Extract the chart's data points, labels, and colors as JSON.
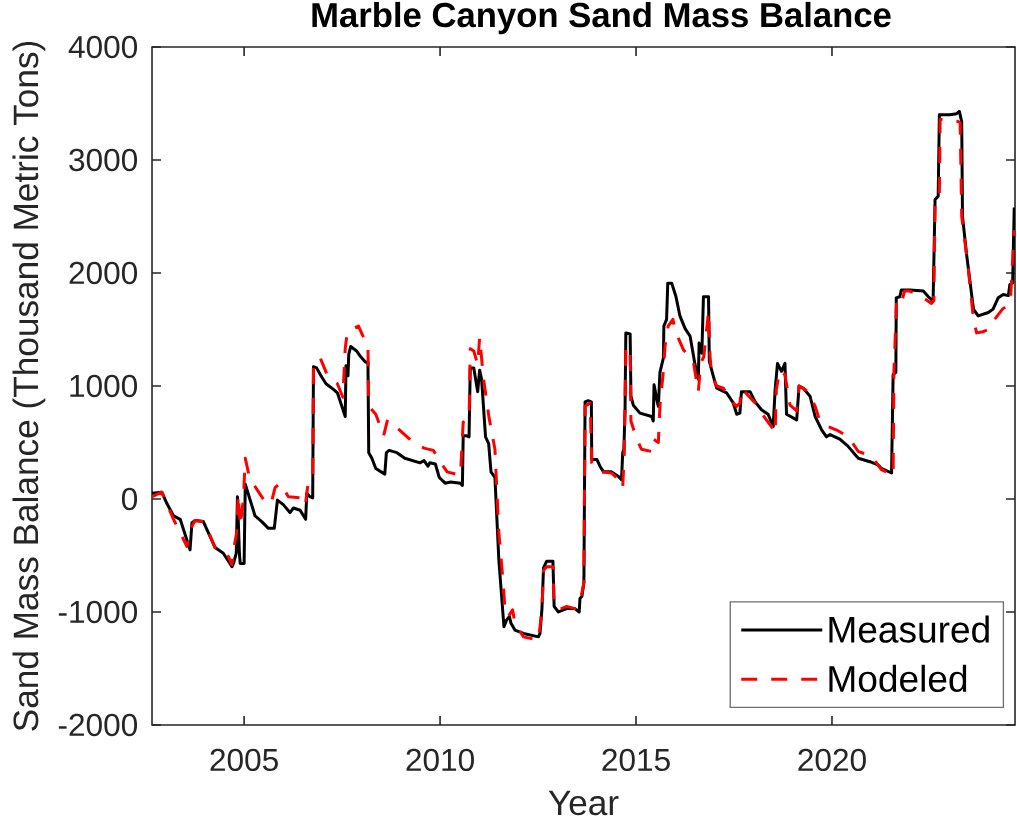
{
  "chart_data": {
    "type": "line",
    "title": "Marble Canyon Sand Mass Balance",
    "xlabel": "Year",
    "ylabel": "Sand Mass Balance (Thousand Metric Tons)",
    "xlim": [
      2002.65,
      2024.67
    ],
    "ylim": [
      -2000,
      4000
    ],
    "xticks": [
      2005,
      2010,
      2015,
      2020
    ],
    "yticks": [
      -2000,
      -1000,
      0,
      1000,
      2000,
      3000,
      4000
    ],
    "legend": "bottom right",
    "series": [
      {
        "name": "Measured",
        "color": "#000000",
        "line_style": "solid",
        "x": [
          2002.65,
          2002.9,
          2003.03,
          2003.2,
          2003.37,
          2003.62,
          2003.67,
          2003.75,
          2003.96,
          2004.09,
          2004.26,
          2004.47,
          2004.69,
          2004.73,
          2004.8,
          2004.83,
          2004.88,
          2004.9,
          2005.0,
          2005.03,
          2005.28,
          2005.45,
          2005.62,
          2005.77,
          2005.85,
          2006.0,
          2006.17,
          2006.26,
          2006.43,
          2006.57,
          2006.6,
          2006.68,
          2006.75,
          2006.77,
          2006.85,
          2006.98,
          2007.09,
          2007.28,
          2007.38,
          2007.58,
          2007.6,
          2007.65,
          2007.67,
          2007.72,
          2007.87,
          2007.97,
          2008.1,
          2008.16,
          2008.18,
          2008.26,
          2008.36,
          2008.59,
          2008.63,
          2008.7,
          2008.9,
          2009.1,
          2009.49,
          2009.59,
          2009.69,
          2009.74,
          2009.88,
          2009.98,
          2010.13,
          2010.27,
          2010.52,
          2010.57,
          2010.59,
          2010.66,
          2010.74,
          2010.77,
          2010.86,
          2010.96,
          2011.01,
          2011.06,
          2011.16,
          2011.24,
          2011.3,
          2011.4,
          2011.5,
          2011.63,
          2011.7,
          2011.77,
          2011.81,
          2011.91,
          2012.13,
          2012.51,
          2012.55,
          2012.6,
          2012.64,
          2012.72,
          2012.88,
          2012.91,
          2013.02,
          2013.23,
          2013.44,
          2013.55,
          2013.57,
          2013.62,
          2013.67,
          2013.7,
          2013.78,
          2013.86,
          2013.87,
          2014.0,
          2014.08,
          2014.17,
          2014.38,
          2014.55,
          2014.63,
          2014.66,
          2014.69,
          2014.72,
          2014.74,
          2014.85,
          2014.87,
          2014.93,
          2015.1,
          2015.4,
          2015.44,
          2015.46,
          2015.53,
          2015.57,
          2015.61,
          2015.7,
          2015.71,
          2015.78,
          2015.81,
          2015.91,
          2016.02,
          2016.12,
          2016.25,
          2016.38,
          2016.5,
          2016.59,
          2016.61,
          2016.68,
          2016.72,
          2016.85,
          2016.87,
          2016.97,
          2017.06,
          2017.31,
          2017.48,
          2017.57,
          2017.65,
          2017.69,
          2017.91,
          2018.04,
          2018.2,
          2018.37,
          2018.5,
          2018.55,
          2018.61,
          2018.71,
          2018.8,
          2018.84,
          2019.1,
          2019.16,
          2019.27,
          2019.44,
          2019.57,
          2019.74,
          2019.86,
          2019.95,
          2020.2,
          2020.4,
          2020.67,
          2020.97,
          2021.18,
          2021.26,
          2021.52,
          2021.56,
          2021.63,
          2021.64,
          2021.73,
          2021.77,
          2021.99,
          2022.33,
          2022.46,
          2022.58,
          2022.63,
          2022.71,
          2022.74,
          2023.01,
          2023.18,
          2023.25,
          2023.31,
          2023.33,
          2023.44,
          2023.61,
          2023.73,
          2023.99,
          2024.11,
          2024.24,
          2024.37,
          2024.5,
          2024.54,
          2024.61,
          2024.65
        ],
        "values": [
          50,
          60,
          -40,
          -150,
          -180,
          -450,
          -210,
          -190,
          -200,
          -300,
          -430,
          -480,
          -600,
          -570,
          -480,
          20,
          -480,
          -570,
          -570,
          130,
          -150,
          -200,
          -260,
          -260,
          -10,
          -50,
          -120,
          -80,
          -100,
          -180,
          50,
          20,
          10,
          1170,
          1160,
          1080,
          1020,
          970,
          940,
          730,
          1180,
          1090,
          1280,
          1350,
          1310,
          1260,
          1210,
          1210,
          410,
          360,
          270,
          220,
          410,
          430,
          410,
          360,
          320,
          340,
          290,
          320,
          310,
          190,
          140,
          150,
          140,
          120,
          560,
          560,
          550,
          1160,
          1160,
          950,
          1140,
          1060,
          550,
          490,
          240,
          190,
          -540,
          -1130,
          -1070,
          -1040,
          -1100,
          -1160,
          -1190,
          -1220,
          -1190,
          -970,
          -610,
          -550,
          -550,
          -950,
          -1000,
          -970,
          -970,
          -1000,
          -880,
          -860,
          -740,
          860,
          870,
          860,
          350,
          350,
          290,
          240,
          240,
          200,
          170,
          410,
          440,
          790,
          1470,
          1460,
          910,
          830,
          760,
          730,
          690,
          1010,
          880,
          820,
          1120,
          1250,
          1530,
          1590,
          1910,
          1910,
          1790,
          1620,
          1510,
          1440,
          1200,
          1060,
          1380,
          1290,
          1790,
          1790,
          1220,
          1090,
          980,
          940,
          850,
          750,
          760,
          950,
          950,
          860,
          790,
          750,
          640,
          970,
          1200,
          1130,
          1200,
          750,
          700,
          1000,
          980,
          910,
          730,
          610,
          550,
          570,
          530,
          470,
          360,
          330,
          300,
          270,
          230,
          1100,
          1120,
          1780,
          1790,
          1850,
          1850,
          1840,
          1790,
          1750,
          2650,
          2680,
          3400,
          3400,
          3410,
          3430,
          3340,
          2500,
          2150,
          1680,
          1620,
          1650,
          1680,
          1780,
          1810,
          1800,
          1900,
          1910,
          2580
        ]
      },
      {
        "name": "Modeled",
        "color": "#ff0000",
        "line_style": "dashed",
        "x": [
          2002.65,
          2002.9,
          2003.2,
          2003.54,
          2003.67,
          2003.75,
          2003.96,
          2004.09,
          2004.26,
          2004.56,
          2004.69,
          2004.73,
          2004.81,
          2004.85,
          2004.9,
          2004.98,
          2005.03,
          2005.15,
          2005.28,
          2005.58,
          2005.71,
          2005.79,
          2005.92,
          2006.13,
          2006.43,
          2006.56,
          2006.64,
          2006.75,
          2006.77,
          2006.94,
          2007.13,
          2007.38,
          2007.52,
          2007.58,
          2007.63,
          2007.72,
          2007.92,
          2008.02,
          2008.16,
          2008.18,
          2008.36,
          2008.56,
          2008.66,
          2008.9,
          2009.29,
          2009.59,
          2009.83,
          2009.98,
          2010.18,
          2010.52,
          2010.59,
          2010.74,
          2010.77,
          2010.86,
          2010.96,
          2011.01,
          2011.11,
          2011.25,
          2011.4,
          2011.5,
          2011.61,
          2011.66,
          2011.74,
          2011.85,
          2011.91,
          2012.13,
          2012.51,
          2012.6,
          2012.64,
          2012.72,
          2012.88,
          2012.91,
          2013.02,
          2013.23,
          2013.44,
          2013.57,
          2013.67,
          2013.7,
          2013.83,
          2013.87,
          2014.08,
          2014.38,
          2014.55,
          2014.66,
          2014.7,
          2014.74,
          2014.85,
          2014.87,
          2015.02,
          2015.14,
          2015.4,
          2015.44,
          2015.57,
          2015.61,
          2015.7,
          2015.74,
          2015.82,
          2015.94,
          2016.02,
          2016.21,
          2016.42,
          2016.46,
          2016.59,
          2016.65,
          2016.73,
          2016.85,
          2016.89,
          2016.93,
          2017.06,
          2017.23,
          2017.48,
          2017.57,
          2017.65,
          2017.69,
          2018.04,
          2018.2,
          2018.5,
          2018.55,
          2018.58,
          2018.67,
          2018.8,
          2018.93,
          2019.1,
          2019.16,
          2019.4,
          2019.57,
          2019.69,
          2019.91,
          2020.12,
          2020.42,
          2020.67,
          2021.01,
          2021.26,
          2021.56,
          2021.58,
          2021.65,
          2021.77,
          2021.85,
          2021.99,
          2022.33,
          2022.54,
          2022.6,
          2022.63,
          2022.74,
          2022.76,
          2023.22,
          2023.27,
          2023.31,
          2023.48,
          2023.61,
          2023.69,
          2023.85,
          2024.0,
          2024.15,
          2024.35,
          2024.55,
          2024.65
        ],
        "values": [
          20,
          60,
          -180,
          -420,
          -240,
          -190,
          -200,
          -290,
          -430,
          -480,
          -580,
          -450,
          -300,
          40,
          -240,
          -10,
          360,
          170,
          110,
          -50,
          -10,
          100,
          140,
          20,
          10,
          -60,
          160,
          190,
          1190,
          1250,
          1090,
          1020,
          900,
          1330,
          1470,
          1500,
          1530,
          1450,
          1360,
          820,
          750,
          560,
          700,
          630,
          510,
          450,
          430,
          340,
          240,
          210,
          680,
          700,
          1330,
          1310,
          1190,
          1430,
          1060,
          720,
          440,
          -300,
          -740,
          -1000,
          -1040,
          -980,
          -1100,
          -1220,
          -1250,
          -980,
          -630,
          -600,
          -600,
          -920,
          -980,
          -950,
          -970,
          -920,
          -740,
          820,
          850,
          320,
          240,
          230,
          170,
          100,
          400,
          1350,
          1320,
          690,
          530,
          440,
          420,
          530,
          500,
          820,
          1140,
          1350,
          1530,
          1590,
          1470,
          1320,
          1230,
          1220,
          950,
          1200,
          1260,
          1660,
          1260,
          1090,
          1000,
          980,
          850,
          820,
          850,
          980,
          850,
          760,
          620,
          580,
          970,
          1140,
          1100,
          830,
          780,
          1000,
          950,
          820,
          690,
          640,
          610,
          550,
          420,
          380,
          260,
          210,
          1120,
          1760,
          1730,
          1840,
          1840,
          1780,
          1730,
          1760,
          2610,
          2700,
          3360,
          3340,
          3330,
          2500,
          2030,
          1590,
          1470,
          1480,
          1500,
          1590,
          1680,
          1730,
          2380
        ]
      }
    ]
  }
}
